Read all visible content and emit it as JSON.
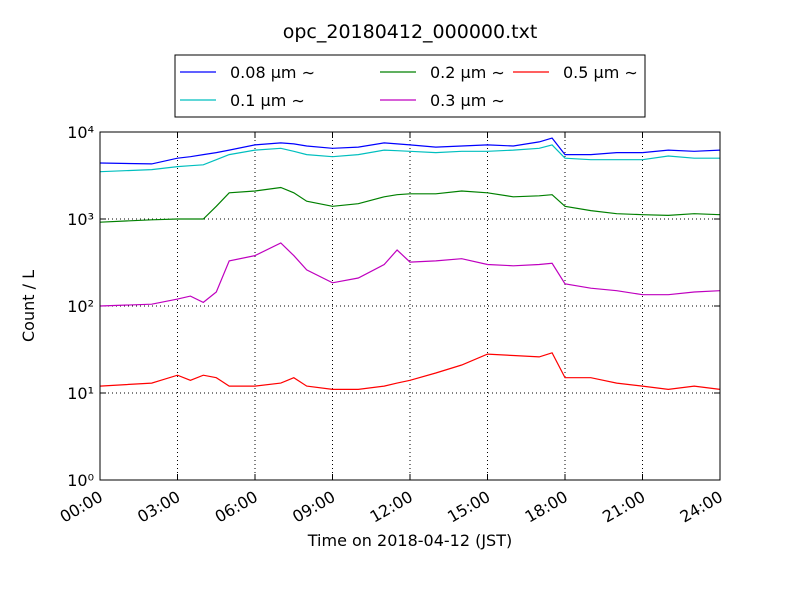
{
  "chart_data": {
    "type": "line",
    "title": "opc_20180412_000000.txt",
    "xlabel": "Time on 2018-04-12 (JST)",
    "ylabel": "Count / L",
    "log_y": true,
    "grid": true,
    "legend": "top",
    "x": [
      0,
      2,
      3,
      3.5,
      4,
      4.5,
      5,
      6,
      7,
      7.5,
      8,
      9,
      10,
      11,
      11.5,
      12,
      13,
      14,
      15,
      16,
      17,
      17.5,
      18,
      19,
      20,
      21,
      22,
      23,
      24
    ],
    "series": [
      {
        "name": "0.08 μm ∼",
        "color": "#0000ff",
        "values": [
          4400,
          4300,
          5000,
          5200,
          5500,
          5800,
          6200,
          7100,
          7500,
          7300,
          6900,
          6500,
          6700,
          7500,
          7300,
          7100,
          6700,
          6900,
          7100,
          6900,
          7700,
          8500,
          5500,
          5500,
          5800,
          5800,
          6200,
          6000,
          6200
        ]
      },
      {
        "name": "0.1 μm ∼",
        "color": "#00bfbf",
        "values": [
          3500,
          3700,
          4000,
          4100,
          4200,
          4800,
          5500,
          6200,
          6500,
          6000,
          5500,
          5200,
          5500,
          6200,
          6100,
          6000,
          5800,
          6000,
          6000,
          6200,
          6500,
          7100,
          5000,
          4800,
          4800,
          4800,
          5300,
          5000,
          5000
        ]
      },
      {
        "name": "0.2 μm ∼",
        "color": "#008000",
        "values": [
          920,
          980,
          1000,
          1000,
          1000,
          1400,
          2000,
          2100,
          2300,
          2000,
          1600,
          1400,
          1500,
          1800,
          1900,
          1950,
          1950,
          2100,
          2000,
          1800,
          1850,
          1900,
          1400,
          1250,
          1150,
          1120,
          1100,
          1150,
          1120
        ]
      },
      {
        "name": "0.3 μm ∼",
        "color": "#bf00bf",
        "values": [
          100,
          105,
          120,
          130,
          110,
          145,
          330,
          380,
          530,
          380,
          260,
          185,
          210,
          300,
          440,
          320,
          330,
          350,
          300,
          290,
          300,
          310,
          180,
          160,
          150,
          135,
          135,
          145,
          150
        ]
      },
      {
        "name": "0.5 μm ∼",
        "color": "#ff0000",
        "values": [
          12,
          13,
          16,
          14,
          16,
          15,
          12,
          12,
          13,
          15,
          12,
          11,
          11,
          12,
          13,
          14,
          17,
          21,
          28,
          27,
          26,
          29,
          15,
          15,
          13,
          12,
          11,
          12,
          11
        ]
      }
    ],
    "xlim": [
      0,
      24
    ],
    "xticks": [
      {
        "value": 0,
        "label": "00:00"
      },
      {
        "value": 3,
        "label": "03:00"
      },
      {
        "value": 6,
        "label": "06:00"
      },
      {
        "value": 9,
        "label": "09:00"
      },
      {
        "value": 12,
        "label": "12:00"
      },
      {
        "value": 15,
        "label": "15:00"
      },
      {
        "value": 18,
        "label": "18:00"
      },
      {
        "value": 21,
        "label": "21:00"
      },
      {
        "value": 24,
        "label": "24:00"
      }
    ],
    "ylim": [
      1,
      10000
    ],
    "yticks": [
      {
        "value": 1,
        "label": "10⁰"
      },
      {
        "value": 10,
        "label": "10¹"
      },
      {
        "value": 100,
        "label": "10²"
      },
      {
        "value": 1000,
        "label": "10³"
      },
      {
        "value": 10000,
        "label": "10⁴"
      }
    ]
  }
}
